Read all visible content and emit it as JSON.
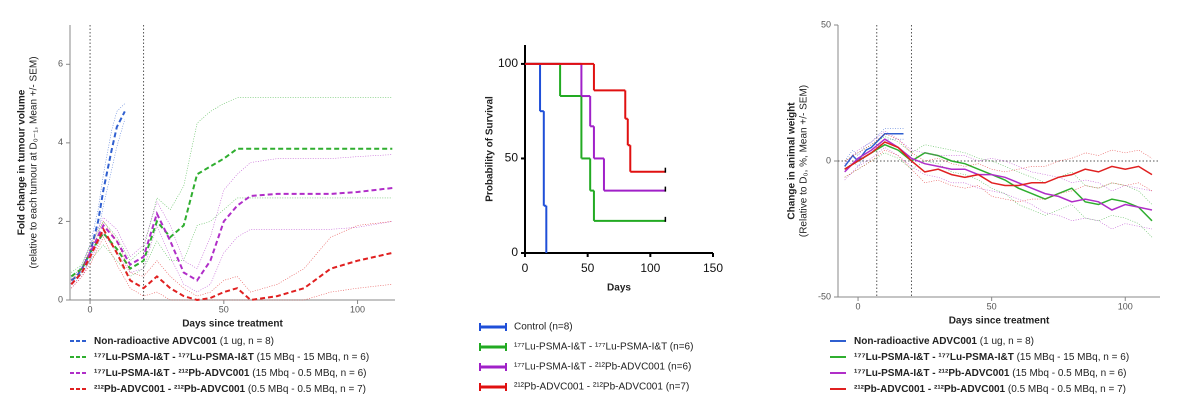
{
  "chart_data": [
    {
      "type": "line",
      "xlabel": "Days since treatment",
      "ylabel": "Fold change in tumour volume",
      "ylabel_note": "(relative to each tumour at D₀₋₁, Mean +/- SEM)",
      "xlim": [
        -7.5,
        114
      ],
      "xticks": [
        0,
        50,
        100
      ],
      "ylim": [
        0,
        7
      ],
      "yticks": [
        0,
        2,
        4,
        6
      ],
      "vlines": [
        0,
        20
      ],
      "dash": true,
      "series": [
        {
          "name": "Non-radioactive ADVC001",
          "note": "(1 ug, n = 8)",
          "color": "#2f5fd0",
          "x": [
            -7,
            -5,
            -3,
            0,
            3,
            5,
            8,
            10,
            13
          ],
          "values": [
            0.5,
            0.6,
            0.8,
            1.2,
            2.0,
            2.8,
            3.8,
            4.4,
            4.8
          ],
          "upper": [
            0.55,
            0.7,
            0.9,
            1.4,
            2.3,
            3.2,
            4.3,
            4.8,
            5.0
          ],
          "lower": [
            0.45,
            0.5,
            0.7,
            1.0,
            1.7,
            2.4,
            3.3,
            3.9,
            4.6
          ]
        },
        {
          "name": "¹⁷⁷Lu-PSMA-I&T - ¹⁷⁷Lu-PSMA-I&T",
          "note": "(15 MBq - 15 MBq, n = 6)",
          "color": "#2fae2f",
          "x": [
            -7,
            -3,
            0,
            5,
            10,
            15,
            20,
            25,
            30,
            35,
            40,
            45,
            50,
            55,
            60,
            70,
            80,
            90,
            100,
            113
          ],
          "values": [
            0.6,
            0.8,
            1.2,
            1.7,
            1.3,
            0.8,
            1.0,
            2.0,
            1.6,
            1.9,
            3.2,
            3.4,
            3.6,
            3.85,
            3.85,
            3.85,
            3.85,
            3.85,
            3.85,
            3.85
          ],
          "upper": [
            0.7,
            0.9,
            1.4,
            2.0,
            1.6,
            1.0,
            1.3,
            2.6,
            2.3,
            2.9,
            4.5,
            4.8,
            5.0,
            5.15,
            5.15,
            5.15,
            5.15,
            5.15,
            5.15,
            5.15
          ],
          "lower": [
            0.5,
            0.7,
            1.0,
            1.4,
            1.0,
            0.6,
            0.8,
            1.5,
            1.0,
            1.0,
            1.9,
            2.0,
            2.3,
            2.6,
            2.6,
            2.6,
            2.6,
            2.6,
            2.6,
            2.6
          ]
        },
        {
          "name": "¹⁷⁷Lu-PSMA-I&T - ²¹²Pb-ADVC001",
          "note": "(15 Mbq - 0.5 MBq, n = 6)",
          "color": "#b02ec8",
          "x": [
            -7,
            -3,
            0,
            5,
            10,
            15,
            20,
            25,
            30,
            35,
            40,
            45,
            50,
            55,
            60,
            70,
            80,
            90,
            100,
            113
          ],
          "values": [
            0.4,
            0.7,
            1.2,
            1.9,
            1.5,
            0.9,
            1.1,
            2.2,
            1.5,
            0.7,
            0.5,
            1.0,
            2.0,
            2.4,
            2.65,
            2.7,
            2.7,
            2.7,
            2.75,
            2.85
          ],
          "upper": [
            0.5,
            0.8,
            1.4,
            2.1,
            1.8,
            1.1,
            1.4,
            2.5,
            1.9,
            1.0,
            0.8,
            1.6,
            2.8,
            3.2,
            3.5,
            3.6,
            3.6,
            3.6,
            3.65,
            3.7
          ],
          "lower": [
            0.3,
            0.6,
            1.0,
            1.7,
            1.2,
            0.7,
            0.8,
            1.9,
            1.1,
            0.4,
            0.2,
            0.4,
            1.2,
            1.6,
            1.8,
            1.8,
            1.8,
            1.8,
            1.85,
            2.0
          ]
        },
        {
          "name": "²¹²Pb-ADVC001 - ²¹²Pb-ADVC001",
          "note": "(0.5 MBq - 0.5 MBq, n = 7)",
          "color": "#e02020",
          "x": [
            -7,
            -3,
            0,
            5,
            10,
            15,
            20,
            25,
            30,
            35,
            40,
            45,
            50,
            55,
            60,
            70,
            80,
            90,
            100,
            113
          ],
          "values": [
            0.4,
            0.7,
            1.1,
            1.8,
            1.2,
            0.5,
            0.3,
            0.6,
            0.3,
            0.1,
            0.0,
            0.05,
            0.2,
            0.3,
            0.0,
            0.1,
            0.3,
            0.8,
            1.0,
            1.2
          ],
          "upper": [
            0.5,
            0.8,
            1.3,
            2.0,
            1.5,
            0.7,
            0.6,
            1.0,
            0.6,
            0.3,
            0.1,
            0.2,
            0.5,
            0.6,
            0.2,
            0.4,
            0.8,
            1.6,
            1.9,
            2.0
          ],
          "lower": [
            0.3,
            0.6,
            0.9,
            1.6,
            0.9,
            0.3,
            0.1,
            0.2,
            0.0,
            0.0,
            0.0,
            0.0,
            0.0,
            0.0,
            0.0,
            0.0,
            0.0,
            0.2,
            0.3,
            0.4
          ]
        }
      ]
    },
    {
      "type": "step",
      "xlabel": "Days",
      "ylabel": "Probability of Survival",
      "xlim": [
        0,
        150
      ],
      "xticks": [
        0,
        50,
        100,
        150
      ],
      "ylim": [
        0,
        110
      ],
      "yticks": [
        0,
        50,
        100
      ],
      "series": [
        {
          "name": "Control (n=8)",
          "color": "#1f4fd8",
          "x": [
            0,
            12,
            15,
            17
          ],
          "values": [
            100,
            75,
            25,
            0
          ]
        },
        {
          "name": "¹⁷⁷Lu-PSMA-I&T - ¹⁷⁷Lu-PSMA-I&T (n=6)",
          "color": "#22aa22",
          "x": [
            0,
            28,
            45,
            52,
            55,
            112
          ],
          "values": [
            100,
            83,
            50,
            33,
            17,
            17
          ]
        },
        {
          "name": "¹⁷⁷Lu-PSMA-I&T - ²¹²Pb-ADVC001 (n=6)",
          "color": "#a020c8",
          "x": [
            0,
            45,
            52,
            55,
            63,
            112
          ],
          "values": [
            100,
            83,
            67,
            50,
            33,
            33
          ]
        },
        {
          "name": "²¹²Pb-ADVC001 - ²¹²Pb-ADVC001 (n=7)",
          "color": "#e01010",
          "x": [
            0,
            55,
            80,
            82,
            84,
            112
          ],
          "values": [
            100,
            86,
            71,
            57,
            43,
            43
          ]
        }
      ]
    },
    {
      "type": "line",
      "xlabel": "Days since treatment",
      "ylabel": "Change in animal weight",
      "ylabel_note": "(Relative to D₀, %, Mean +/- SEM)",
      "xlim": [
        -7.5,
        113
      ],
      "xticks": [
        0,
        50,
        100
      ],
      "ylim": [
        -50,
        50
      ],
      "yticks": [
        -50,
        0,
        50
      ],
      "vlines": [
        7,
        20
      ],
      "hlines": [
        0
      ],
      "dash": false,
      "series": [
        {
          "name": "Non-radioactive ADVC001",
          "note": "(1 ug, n = 8)",
          "color": "#2f5fd0",
          "x": [
            -5,
            -2,
            0,
            3,
            5,
            8,
            10,
            13,
            17
          ],
          "values": [
            -2,
            2,
            0,
            4,
            5,
            8,
            10,
            10,
            10
          ],
          "upper": [
            0,
            4,
            2,
            6,
            7,
            10,
            12,
            12,
            12
          ],
          "lower": [
            -4,
            0,
            -2,
            2,
            3,
            6,
            8,
            8,
            8
          ]
        },
        {
          "name": "¹⁷⁷Lu-PSMA-I&T - ¹⁷⁷Lu-PSMA-I&T",
          "note": "(15 MBq - 15 MBq, n = 6)",
          "color": "#2fae2f",
          "x": [
            -5,
            0,
            5,
            10,
            15,
            20,
            25,
            30,
            35,
            40,
            45,
            50,
            55,
            60,
            65,
            70,
            75,
            80,
            85,
            90,
            95,
            100,
            105,
            110
          ],
          "values": [
            -3,
            0,
            3,
            6,
            4,
            0,
            3,
            2,
            0,
            -1,
            -3,
            -5,
            -7,
            -10,
            -12,
            -14,
            -12,
            -10,
            -15,
            -16,
            -14,
            -15,
            -17,
            -22
          ],
          "upper": [
            0,
            3,
            6,
            9,
            7,
            3,
            6,
            5,
            4,
            3,
            1,
            0,
            -2,
            -4,
            -6,
            -8,
            -6,
            -4,
            -9,
            -10,
            -8,
            -9,
            -11,
            -16
          ],
          "lower": [
            -6,
            -3,
            0,
            3,
            1,
            -3,
            0,
            -1,
            -4,
            -5,
            -7,
            -10,
            -12,
            -16,
            -18,
            -20,
            -18,
            -16,
            -21,
            -22,
            -20,
            -21,
            -23,
            -28
          ]
        },
        {
          "name": "¹⁷⁷Lu-PSMA-I&T - ²¹²Pb-ADVC001",
          "note": "(15 Mbq - 0.5 MBq, n = 6)",
          "color": "#b02ec8",
          "x": [
            -5,
            0,
            5,
            10,
            15,
            20,
            25,
            30,
            35,
            40,
            45,
            50,
            55,
            60,
            65,
            70,
            75,
            80,
            85,
            90,
            95,
            100,
            105,
            110
          ],
          "values": [
            -4,
            1,
            4,
            8,
            5,
            1,
            -1,
            -2,
            -3,
            -3,
            -5,
            -5,
            -6,
            -8,
            -10,
            -12,
            -13,
            -15,
            -14,
            -15,
            -18,
            -16,
            -17,
            -18
          ],
          "upper": [
            -1,
            4,
            7,
            11,
            8,
            4,
            3,
            2,
            2,
            2,
            0,
            1,
            0,
            -2,
            -4,
            -5,
            -6,
            -8,
            -7,
            -8,
            -11,
            -9,
            -10,
            -11
          ],
          "lower": [
            -7,
            -2,
            1,
            5,
            2,
            -2,
            -5,
            -6,
            -8,
            -8,
            -10,
            -11,
            -12,
            -14,
            -16,
            -19,
            -20,
            -22,
            -21,
            -22,
            -25,
            -23,
            -24,
            -25
          ]
        },
        {
          "name": "²¹²Pb-ADVC001 - ²¹²Pb-ADVC001",
          "note": "(0.5 MBq - 0.5 MBq, n = 7)",
          "color": "#e02020",
          "x": [
            -5,
            0,
            5,
            10,
            15,
            20,
            25,
            30,
            35,
            40,
            45,
            50,
            55,
            60,
            65,
            70,
            75,
            80,
            85,
            90,
            95,
            100,
            105,
            110
          ],
          "values": [
            -3,
            0,
            3,
            7,
            5,
            0,
            -4,
            -3,
            -5,
            -6,
            -5,
            -8,
            -9,
            -9,
            -8,
            -8,
            -6,
            -5,
            -3,
            -4,
            -2,
            -3,
            -2,
            -5
          ],
          "upper": [
            0,
            3,
            6,
            10,
            8,
            3,
            0,
            1,
            -1,
            -2,
            -1,
            -3,
            -4,
            -3,
            -2,
            -2,
            0,
            1,
            3,
            2,
            4,
            3,
            4,
            1
          ],
          "lower": [
            -6,
            -3,
            0,
            4,
            2,
            -3,
            -8,
            -7,
            -9,
            -10,
            -9,
            -13,
            -14,
            -15,
            -14,
            -14,
            -12,
            -11,
            -9,
            -10,
            -8,
            -9,
            -8,
            -11
          ]
        }
      ]
    }
  ]
}
